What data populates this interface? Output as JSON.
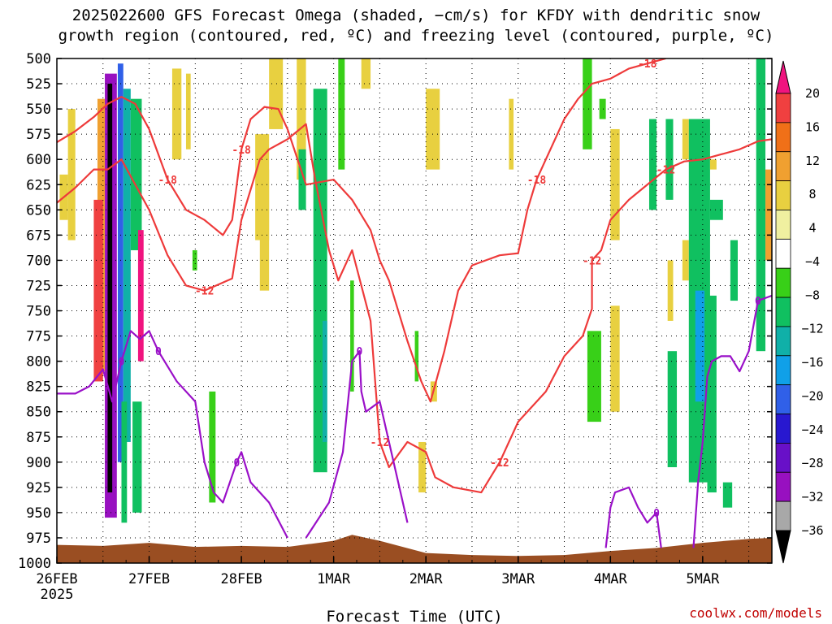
{
  "title_line1": "2025022600 GFS Forecast Omega (shaded, −cm/s) for KFDY with dendritic snow",
  "title_line2": "growth region (contoured, red, ºC) and freezing level (contoured, purple, ºC)",
  "credit": "coolwx.com/models",
  "colors": {
    "dgz_contour": "#ee3a3a",
    "freezing_contour": "#9a10c8",
    "terrain": "#9a4e22",
    "grid": "#000000"
  },
  "chart_data": {
    "type": "heatmap",
    "title": "2025022600 GFS Forecast Omega (shaded, −cm/s) for KFDY with dendritic snow growth region (contoured, red, ºC) and freezing level (contoured, purple, ºC)",
    "xlabel": "Forecast Time (UTC)",
    "ylabel": "",
    "x_unit": "days since 26FEB 2025 00Z",
    "x_range": [
      0,
      7.75
    ],
    "x_ticks": [
      {
        "x": 0,
        "label": "26FEB",
        "sub": "2025"
      },
      {
        "x": 1,
        "label": "27FEB"
      },
      {
        "x": 2,
        "label": "28FEB"
      },
      {
        "x": 3,
        "label": "1MAR"
      },
      {
        "x": 4,
        "label": "2MAR"
      },
      {
        "x": 5,
        "label": "3MAR"
      },
      {
        "x": 6,
        "label": "4MAR"
      },
      {
        "x": 7,
        "label": "5MAR"
      }
    ],
    "y_ticks": [
      500,
      525,
      550,
      575,
      600,
      625,
      650,
      675,
      700,
      725,
      750,
      775,
      800,
      825,
      850,
      875,
      900,
      925,
      950,
      975,
      1000
    ],
    "y_range": [
      500,
      1000
    ],
    "grid": true,
    "colorbar": {
      "labels": [
        "20",
        "16",
        "12",
        "8",
        "4",
        "−4",
        "−8",
        "−12",
        "−16",
        "−20",
        "−24",
        "−28",
        "−32",
        "−36"
      ],
      "colors": [
        "#f0147f",
        "#f04040",
        "#f07018",
        "#f0a030",
        "#e8d040",
        "#f0f0a0",
        "#ffffff",
        "#38d018",
        "#10c060",
        "#10b0a8",
        "#10a0e8",
        "#3060e8",
        "#2818d0",
        "#6810c8",
        "#9810c0",
        "#a8a8a8",
        "#000000"
      ]
    },
    "omega_cells": [
      {
        "x0": 0.52,
        "x1": 0.65,
        "p0": 515,
        "p1": 955,
        "v": -32
      },
      {
        "x0": 0.55,
        "x1": 0.6,
        "p0": 525,
        "p1": 930,
        "v": -36
      },
      {
        "x0": 0.66,
        "x1": 0.72,
        "p0": 505,
        "p1": 900,
        "v": -20
      },
      {
        "x0": 0.72,
        "x1": 0.8,
        "p0": 530,
        "p1": 880,
        "v": -14
      },
      {
        "x0": 0.44,
        "x1": 0.52,
        "p0": 540,
        "p1": 810,
        "v": 8
      },
      {
        "x0": 0.8,
        "x1": 0.92,
        "p0": 540,
        "p1": 690,
        "v": -10
      },
      {
        "x0": 0.88,
        "x1": 0.94,
        "p0": 670,
        "p1": 800,
        "v": 20
      },
      {
        "x0": 0.4,
        "x1": 0.5,
        "p0": 640,
        "p1": 820,
        "v": 16
      },
      {
        "x0": 0.03,
        "x1": 0.12,
        "p0": 615,
        "p1": 660,
        "v": 6
      },
      {
        "x0": 0.12,
        "x1": 0.2,
        "p0": 550,
        "p1": 680,
        "v": 6
      },
      {
        "x0": 0.82,
        "x1": 0.92,
        "p0": 840,
        "p1": 950,
        "v": -8
      },
      {
        "x0": 0.7,
        "x1": 0.76,
        "p0": 840,
        "p1": 960,
        "v": -10
      },
      {
        "x0": 1.25,
        "x1": 1.35,
        "p0": 510,
        "p1": 600,
        "v": 5
      },
      {
        "x0": 1.4,
        "x1": 1.45,
        "p0": 515,
        "p1": 590,
        "v": 5
      },
      {
        "x0": 1.47,
        "x1": 1.52,
        "p0": 690,
        "p1": 710,
        "v": -6
      },
      {
        "x0": 1.65,
        "x1": 1.72,
        "p0": 830,
        "p1": 940,
        "v": -6
      },
      {
        "x0": 2.15,
        "x1": 2.3,
        "p0": 575,
        "p1": 680,
        "v": 6
      },
      {
        "x0": 2.2,
        "x1": 2.3,
        "p0": 610,
        "p1": 730,
        "v": 5
      },
      {
        "x0": 2.3,
        "x1": 2.45,
        "p0": 500,
        "p1": 570,
        "v": 5
      },
      {
        "x0": 2.6,
        "x1": 2.7,
        "p0": 500,
        "p1": 620,
        "v": 5
      },
      {
        "x0": 2.62,
        "x1": 2.7,
        "p0": 590,
        "p1": 650,
        "v": -8
      },
      {
        "x0": 2.78,
        "x1": 2.93,
        "p0": 530,
        "p1": 910,
        "v": -9
      },
      {
        "x0": 2.88,
        "x1": 2.93,
        "p0": 760,
        "p1": 880,
        "v": -14
      },
      {
        "x0": 3.05,
        "x1": 3.12,
        "p0": 500,
        "p1": 610,
        "v": -6
      },
      {
        "x0": 3.3,
        "x1": 3.4,
        "p0": 500,
        "p1": 530,
        "v": 5
      },
      {
        "x0": 3.18,
        "x1": 3.22,
        "p0": 720,
        "p1": 830,
        "v": -6
      },
      {
        "x0": 3.88,
        "x1": 3.92,
        "p0": 770,
        "p1": 820,
        "v": -6
      },
      {
        "x0": 3.92,
        "x1": 4.0,
        "p0": 880,
        "p1": 930,
        "v": 5
      },
      {
        "x0": 4.0,
        "x1": 4.15,
        "p0": 530,
        "p1": 610,
        "v": 6
      },
      {
        "x0": 4.05,
        "x1": 4.12,
        "p0": 820,
        "p1": 840,
        "v": 5
      },
      {
        "x0": 4.9,
        "x1": 4.95,
        "p0": 540,
        "p1": 610,
        "v": 5
      },
      {
        "x0": 5.7,
        "x1": 5.8,
        "p0": 500,
        "p1": 590,
        "v": -6
      },
      {
        "x0": 5.75,
        "x1": 5.9,
        "p0": 770,
        "p1": 860,
        "v": -6
      },
      {
        "x0": 5.88,
        "x1": 5.95,
        "p0": 540,
        "p1": 560,
        "v": -6
      },
      {
        "x0": 6.0,
        "x1": 6.1,
        "p0": 570,
        "p1": 680,
        "v": 5
      },
      {
        "x0": 6.0,
        "x1": 6.1,
        "p0": 745,
        "p1": 850,
        "v": 5
      },
      {
        "x0": 6.42,
        "x1": 6.5,
        "p0": 560,
        "p1": 650,
        "v": -8
      },
      {
        "x0": 6.6,
        "x1": 6.68,
        "p0": 560,
        "p1": 640,
        "v": -8
      },
      {
        "x0": 6.62,
        "x1": 6.68,
        "p0": 700,
        "p1": 760,
        "v": 5
      },
      {
        "x0": 6.62,
        "x1": 6.72,
        "p0": 790,
        "p1": 905,
        "v": -10
      },
      {
        "x0": 6.78,
        "x1": 6.85,
        "p0": 560,
        "p1": 600,
        "v": 5
      },
      {
        "x0": 6.78,
        "x1": 6.85,
        "p0": 680,
        "p1": 720,
        "v": 5
      },
      {
        "x0": 6.85,
        "x1": 7.08,
        "p0": 560,
        "p1": 920,
        "v": -10
      },
      {
        "x0": 6.92,
        "x1": 7.02,
        "p0": 730,
        "p1": 840,
        "v": -16
      },
      {
        "x0": 7.08,
        "x1": 7.15,
        "p0": 600,
        "p1": 610,
        "v": 5
      },
      {
        "x0": 7.08,
        "x1": 7.22,
        "p0": 640,
        "p1": 660,
        "v": -8
      },
      {
        "x0": 7.05,
        "x1": 7.15,
        "p0": 735,
        "p1": 930,
        "v": -10
      },
      {
        "x0": 7.58,
        "x1": 7.68,
        "p0": 500,
        "p1": 790,
        "v": -8
      },
      {
        "x0": 7.68,
        "x1": 7.75,
        "p0": 610,
        "p1": 700,
        "v": 8
      },
      {
        "x0": 7.3,
        "x1": 7.38,
        "p0": 680,
        "p1": 740,
        "v": -8
      },
      {
        "x0": 7.22,
        "x1": 7.32,
        "p0": 920,
        "p1": 945,
        "v": -10
      }
    ],
    "dgz_contours": [
      {
        "label": "-12",
        "points": [
          [
            0,
            643
          ],
          [
            0.2,
            628
          ],
          [
            0.4,
            610
          ],
          [
            0.55,
            610
          ],
          [
            0.7,
            600
          ],
          [
            0.85,
            625
          ],
          [
            1.0,
            650
          ],
          [
            1.2,
            695
          ],
          [
            1.4,
            725
          ],
          [
            1.6,
            730
          ],
          [
            1.9,
            718
          ],
          [
            2.0,
            660
          ],
          [
            2.2,
            600
          ],
          [
            2.3,
            590
          ],
          [
            2.5,
            580
          ],
          [
            2.7,
            565
          ],
          [
            2.8,
            620
          ],
          [
            2.95,
            690
          ],
          [
            3.05,
            720
          ],
          [
            3.2,
            690
          ],
          [
            3.4,
            760
          ],
          [
            3.5,
            880
          ],
          [
            3.6,
            905
          ],
          [
            3.8,
            880
          ],
          [
            4.0,
            890
          ],
          [
            4.1,
            915
          ],
          [
            4.3,
            925
          ],
          [
            4.6,
            930
          ],
          [
            4.8,
            900
          ],
          [
            5.0,
            860
          ],
          [
            5.3,
            830
          ],
          [
            5.5,
            795
          ],
          [
            5.7,
            775
          ],
          [
            5.8,
            748
          ],
          [
            5.8,
            730
          ],
          [
            5.8,
            700
          ],
          [
            5.9,
            690
          ],
          [
            6.0,
            660
          ],
          [
            6.2,
            640
          ],
          [
            6.4,
            625
          ],
          [
            6.6,
            610
          ],
          [
            6.8,
            602
          ],
          [
            7.0,
            600
          ],
          [
            7.2,
            595
          ],
          [
            7.4,
            590
          ],
          [
            7.6,
            582
          ],
          [
            7.75,
            580
          ]
        ]
      },
      {
        "label": "-18",
        "points": [
          [
            0,
            583
          ],
          [
            0.2,
            572
          ],
          [
            0.4,
            558
          ],
          [
            0.55,
            545
          ],
          [
            0.7,
            538
          ],
          [
            0.85,
            545
          ],
          [
            1.0,
            570
          ],
          [
            1.2,
            620
          ],
          [
            1.4,
            650
          ],
          [
            1.6,
            660
          ],
          [
            1.8,
            675
          ],
          [
            1.9,
            660
          ],
          [
            2.0,
            590
          ],
          [
            2.1,
            560
          ],
          [
            2.25,
            548
          ],
          [
            2.4,
            550
          ],
          [
            2.5,
            570
          ],
          [
            2.7,
            625
          ],
          [
            3.0,
            620
          ],
          [
            3.2,
            640
          ],
          [
            3.4,
            670
          ],
          [
            3.5,
            700
          ],
          [
            3.6,
            720
          ],
          [
            3.8,
            780
          ],
          [
            3.95,
            820
          ],
          [
            4.05,
            840
          ],
          [
            4.2,
            790
          ],
          [
            4.35,
            730
          ],
          [
            4.5,
            705
          ],
          [
            4.65,
            700
          ],
          [
            4.8,
            695
          ],
          [
            5.0,
            693
          ],
          [
            5.1,
            650
          ],
          [
            5.2,
            620
          ],
          [
            5.3,
            600
          ],
          [
            5.5,
            560
          ],
          [
            5.65,
            540
          ],
          [
            5.8,
            525
          ],
          [
            6.0,
            520
          ],
          [
            6.2,
            510
          ],
          [
            6.4,
            505
          ],
          [
            6.6,
            500
          ]
        ]
      }
    ],
    "freezing_contours": [
      {
        "label": "0",
        "points": [
          [
            0,
            832
          ],
          [
            0.2,
            832
          ],
          [
            0.35,
            825
          ],
          [
            0.5,
            808
          ],
          [
            0.6,
            840
          ],
          [
            0.7,
            800
          ],
          [
            0.8,
            770
          ],
          [
            0.9,
            778
          ],
          [
            1.0,
            770
          ],
          [
            1.1,
            790
          ],
          [
            1.3,
            820
          ],
          [
            1.5,
            840
          ],
          [
            1.6,
            900
          ],
          [
            1.7,
            930
          ],
          [
            1.8,
            940
          ],
          [
            1.95,
            900
          ],
          [
            2.0,
            890
          ],
          [
            2.1,
            920
          ],
          [
            2.3,
            940
          ],
          [
            2.5,
            975
          ]
        ]
      },
      {
        "label": "0",
        "points": [
          [
            2.7,
            975
          ],
          [
            2.95,
            940
          ],
          [
            3.1,
            890
          ],
          [
            3.2,
            800
          ],
          [
            3.28,
            790
          ],
          [
            3.3,
            830
          ],
          [
            3.35,
            850
          ],
          [
            3.5,
            840
          ],
          [
            3.6,
            880
          ],
          [
            3.7,
            920
          ],
          [
            3.8,
            960
          ]
        ]
      },
      {
        "label": "0",
        "points": [
          [
            5.95,
            985
          ],
          [
            6.0,
            945
          ],
          [
            6.05,
            930
          ],
          [
            6.2,
            925
          ],
          [
            6.3,
            945
          ],
          [
            6.4,
            960
          ],
          [
            6.5,
            950
          ],
          [
            6.55,
            985
          ]
        ]
      },
      {
        "label": "0",
        "points": [
          [
            6.9,
            985
          ],
          [
            6.95,
            920
          ],
          [
            7.0,
            880
          ],
          [
            7.05,
            815
          ],
          [
            7.1,
            800
          ],
          [
            7.2,
            795
          ],
          [
            7.3,
            795
          ],
          [
            7.4,
            810
          ],
          [
            7.5,
            790
          ],
          [
            7.6,
            740
          ],
          [
            7.75,
            735
          ]
        ]
      }
    ],
    "terrain_surface": [
      [
        0,
        982
      ],
      [
        0.5,
        983
      ],
      [
        1,
        980
      ],
      [
        1.5,
        984
      ],
      [
        2,
        983
      ],
      [
        2.5,
        984
      ],
      [
        3,
        978
      ],
      [
        3.2,
        972
      ],
      [
        3.5,
        978
      ],
      [
        4,
        990
      ],
      [
        4.5,
        992
      ],
      [
        5,
        993
      ],
      [
        5.5,
        992
      ],
      [
        6,
        988
      ],
      [
        6.5,
        985
      ],
      [
        7,
        980
      ],
      [
        7.5,
        976
      ],
      [
        7.75,
        975
      ]
    ]
  }
}
